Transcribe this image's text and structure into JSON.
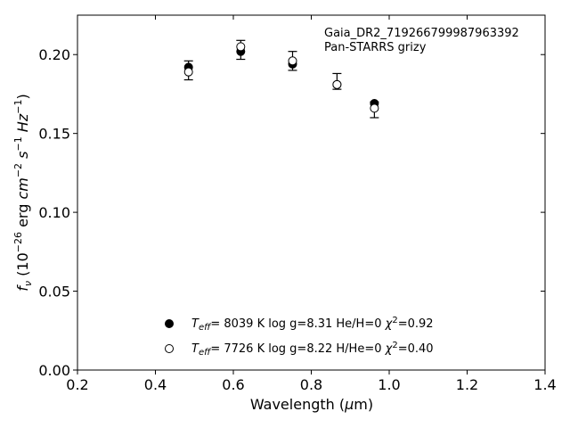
{
  "chart_data": {
    "type": "scatter",
    "title": "",
    "xlabel": "Wavelength (μm)",
    "ylabel": "fν (10⁻²⁶ erg cm⁻² s⁻¹ Hz⁻¹)",
    "xlim": [
      0.2,
      1.4
    ],
    "ylim": [
      0.0,
      0.225
    ],
    "x_ticks": [
      "0.2",
      "0.4",
      "0.6",
      "0.8",
      "1.0",
      "1.2",
      "1.4"
    ],
    "y_ticks": [
      "0.00",
      "0.05",
      "0.10",
      "0.15",
      "0.20"
    ],
    "grid": false,
    "annotations": [
      "Gaia_DR2_719266799987963392",
      "Pan-STARRS grizy"
    ],
    "legend_position": "bottom-center",
    "observed": {
      "x": [
        0.485,
        0.619,
        0.752,
        0.866,
        0.962
      ],
      "y": [
        0.19,
        0.203,
        0.196,
        0.183,
        0.165
      ],
      "yerr": [
        0.006,
        0.006,
        0.006,
        0.005,
        0.005
      ]
    },
    "series": [
      {
        "label": "T_eff=  8039 K  log g=8.31  He/H=0  χ²=0.92",
        "marker": "filled-circle",
        "x": [
          0.485,
          0.619,
          0.752,
          0.866,
          0.962
        ],
        "y": [
          0.192,
          0.202,
          0.194,
          0.181,
          0.169
        ]
      },
      {
        "label": "T_eff=  7726 K  log g=8.22  H/He=0  χ²=0.40",
        "marker": "open-circle",
        "x": [
          0.485,
          0.619,
          0.752,
          0.866,
          0.962
        ],
        "y": [
          0.189,
          0.205,
          0.196,
          0.181,
          0.166
        ]
      }
    ]
  }
}
